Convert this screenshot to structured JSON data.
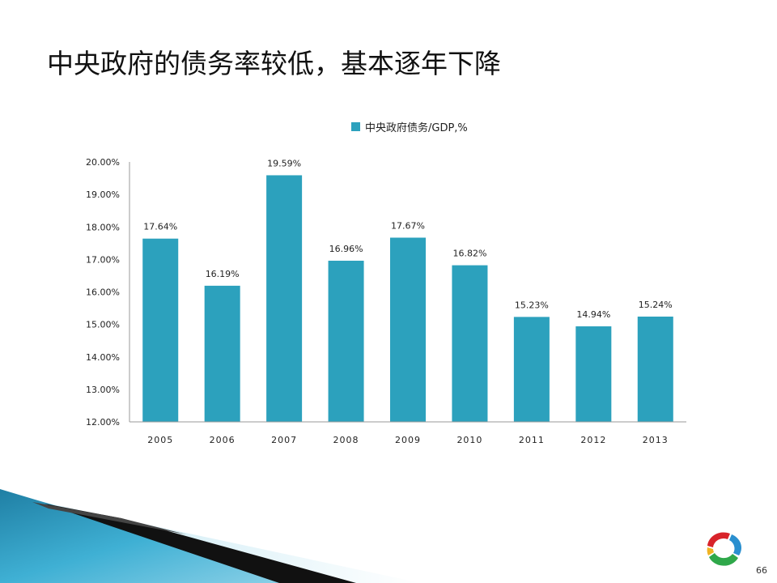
{
  "slide": {
    "title": "中央政府的债务率较低，基本逐年下降",
    "page_number": "66"
  },
  "colors": {
    "bar": "#2ca1bd",
    "text": "#222222",
    "axis": "#9a9a9a"
  },
  "chart_data": {
    "type": "bar",
    "categories": [
      "2005",
      "2006",
      "2007",
      "2008",
      "2009",
      "2010",
      "2011",
      "2012",
      "2013"
    ],
    "series": [
      {
        "name": "中央政府债务/GDP,%",
        "values": [
          17.64,
          16.19,
          19.59,
          16.96,
          17.67,
          16.82,
          15.23,
          14.94,
          15.24
        ],
        "labels": [
          "17.64%",
          "16.19%",
          "19.59%",
          "16.96%",
          "17.67%",
          "16.82%",
          "15.23%",
          "14.94%",
          "15.24%"
        ]
      }
    ],
    "yticks": [
      12,
      13,
      14,
      15,
      16,
      17,
      18,
      19,
      20
    ],
    "ytick_labels": [
      "12.00%",
      "13.00%",
      "14.00%",
      "15.00%",
      "16.00%",
      "17.00%",
      "18.00%",
      "19.00%",
      "20.00%"
    ],
    "ylim": [
      12,
      20
    ],
    "grid": false,
    "legend_position": "top"
  }
}
